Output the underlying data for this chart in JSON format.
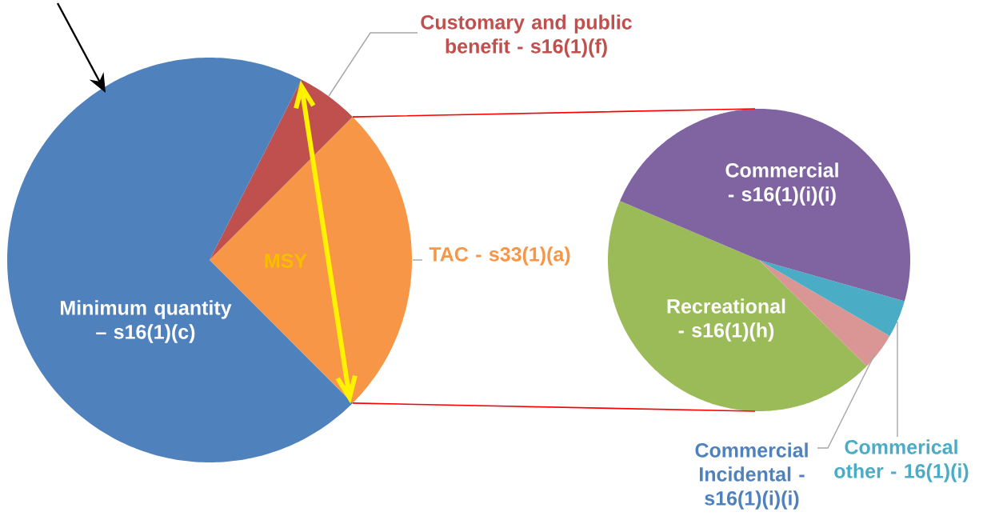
{
  "chart_data": [
    {
      "type": "pie",
      "categories": [
        "TAC - s33(1)(a)",
        "Customary and public benefit - s16(1)(f)",
        "Minimum quantity – s16(1)(c)"
      ],
      "values": [
        25,
        5,
        70
      ],
      "colors": [
        "#f79646",
        "#c0504d",
        "#4f81bd"
      ],
      "annotations": [
        "MSY"
      ]
    },
    {
      "type": "pie",
      "categories": [
        "Recreational - s16(1)(h)",
        "Commercial Incidental - s16(1)(i)(i)",
        "Commerical other - 16(1)(i)",
        "Commercial - s16(1)(i)(i)"
      ],
      "values": [
        44,
        4,
        4,
        48
      ],
      "colors": [
        "#9bbb59",
        "#d99694",
        "#4bacc6",
        "#8064a2"
      ]
    }
  ]
}
